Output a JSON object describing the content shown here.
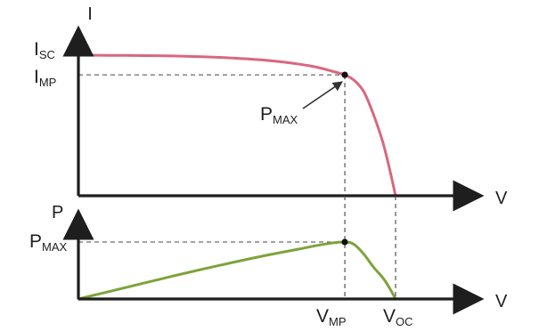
{
  "chart_data": [
    {
      "type": "line",
      "panel": "iv-curve",
      "axis_titles": {
        "x": "V",
        "y": "I"
      },
      "xlim": [
        0,
        1
      ],
      "ylim": [
        0,
        1.05
      ],
      "grid": false,
      "series": [
        {
          "color": "#d9677f",
          "points": [
            [
              0.0,
              1.0
            ],
            [
              0.1,
              0.999
            ],
            [
              0.2,
              0.997
            ],
            [
              0.3,
              0.994
            ],
            [
              0.4,
              0.988
            ],
            [
              0.5,
              0.978
            ],
            [
              0.6,
              0.962
            ],
            [
              0.7,
              0.935
            ],
            [
              0.75,
              0.915
            ],
            [
              0.8,
              0.886
            ],
            [
              0.84,
              0.86
            ],
            [
              0.87,
              0.82
            ],
            [
              0.9,
              0.74
            ],
            [
              0.93,
              0.58
            ],
            [
              0.96,
              0.38
            ],
            [
              0.98,
              0.2
            ],
            [
              1.0,
              0.0
            ]
          ]
        }
      ],
      "marked_point": {
        "x": 0.84,
        "y": 0.86
      },
      "tick_labels": {
        "y": [
          {
            "main": "I",
            "sub": "SC",
            "value": 1.0
          },
          {
            "main": "I",
            "sub": "MP",
            "value": 0.86
          }
        ]
      },
      "annotation": {
        "main": "P",
        "sub": "MAX"
      }
    },
    {
      "type": "line",
      "panel": "pv-curve",
      "axis_titles": {
        "x": "V",
        "y": "P"
      },
      "xlim": [
        0,
        1
      ],
      "ylim": [
        0,
        1.1
      ],
      "grid": false,
      "series": [
        {
          "color": "#7ea33a",
          "points": [
            [
              0.0,
              0.0
            ],
            [
              0.1,
              0.12
            ],
            [
              0.2,
              0.24
            ],
            [
              0.3,
              0.36
            ],
            [
              0.4,
              0.475
            ],
            [
              0.5,
              0.585
            ],
            [
              0.6,
              0.69
            ],
            [
              0.7,
              0.785
            ],
            [
              0.78,
              0.86
            ],
            [
              0.84,
              0.89
            ],
            [
              0.87,
              0.85
            ],
            [
              0.9,
              0.7
            ],
            [
              0.93,
              0.5
            ],
            [
              0.96,
              0.33
            ],
            [
              0.98,
              0.18
            ],
            [
              1.0,
              0.0
            ]
          ]
        }
      ],
      "marked_point": {
        "x": 0.84,
        "y": 0.89
      },
      "tick_labels": {
        "y": [
          {
            "main": "P",
            "sub": "MAX",
            "value": 0.89
          }
        ],
        "x": [
          {
            "main": "V",
            "sub": "MP",
            "value": 0.84
          },
          {
            "main": "V",
            "sub": "OC",
            "value": 1.0
          }
        ]
      }
    }
  ],
  "colors": {
    "axis": "#1e1e1e",
    "guide": "#444444",
    "iv_curve": "#d9677f",
    "pv_curve": "#7ea33a",
    "point": "#111111"
  }
}
